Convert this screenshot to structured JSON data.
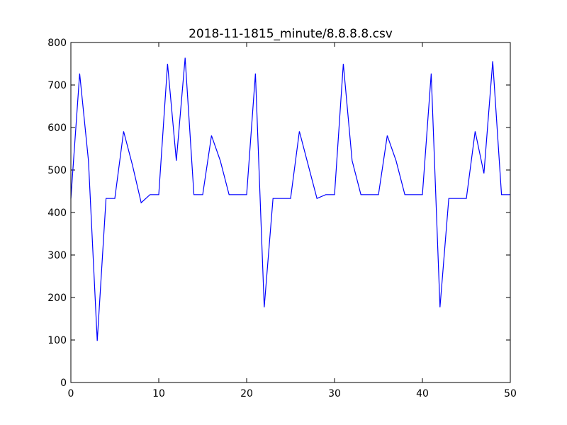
{
  "chart_data": {
    "type": "line",
    "title": "2018-11-1815_minute/8.8.8.8.csv",
    "xlabel": "",
    "ylabel": "",
    "xlim": [
      0,
      50
    ],
    "ylim": [
      0,
      800
    ],
    "x_ticks": [
      0,
      10,
      20,
      30,
      40,
      50
    ],
    "y_ticks": [
      0,
      100,
      200,
      300,
      400,
      500,
      600,
      700,
      800
    ],
    "grid": false,
    "series": [
      {
        "color": "#0000ff",
        "x": [
          0,
          1,
          2,
          3,
          4,
          5,
          6,
          7,
          8,
          9,
          10,
          11,
          12,
          13,
          14,
          15,
          16,
          17,
          18,
          19,
          20,
          21,
          22,
          23,
          24,
          25,
          26,
          27,
          28,
          29,
          30,
          31,
          32,
          33,
          34,
          35,
          36,
          37,
          38,
          39,
          40,
          41,
          42,
          43,
          44,
          45,
          46,
          47,
          48,
          49,
          50
        ],
        "y": [
          433,
          727,
          522,
          98,
          433,
          433,
          591,
          512,
          423,
          442,
          442,
          750,
          522,
          764,
          442,
          442,
          581,
          522,
          442,
          442,
          442,
          727,
          177,
          433,
          433,
          433,
          591,
          512,
          433,
          442,
          442,
          750,
          522,
          442,
          442,
          442,
          581,
          522,
          442,
          442,
          442,
          727,
          177,
          433,
          433,
          433,
          591,
          492,
          756,
          442,
          442
        ]
      }
    ]
  }
}
